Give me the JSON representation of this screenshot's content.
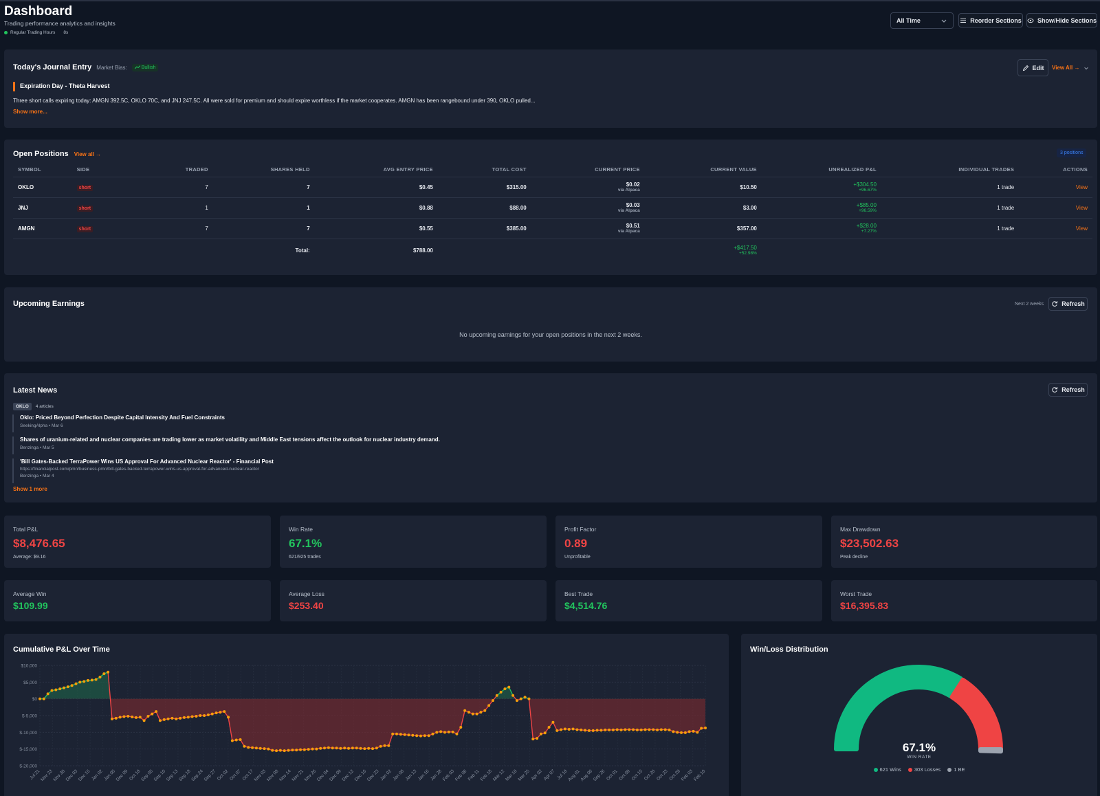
{
  "header": {
    "title": "Dashboard",
    "subtitle": "Trading performance analytics and insights",
    "session": "Regular Trading Hours",
    "refresh_age": "8s",
    "range_select": "All Time",
    "reorder_label": "Reorder Sections",
    "showhide_label": "Show/Hide Sections"
  },
  "journal": {
    "title": "Today's Journal Entry",
    "bias_label": "Market Bias:",
    "bias_value": "Bullish",
    "edit_label": "Edit",
    "view_all_label": "View All →",
    "entry_title": "Expiration Day - Theta Harvest",
    "entry_text": "Three short calls expiring today: AMGN 392.5C, OKLO 70C, and JNJ 247.5C. All were sold for premium and should expire worthless if the market cooperates. AMGN has been rangebound under 390, OKLO pulled...",
    "show_more": "Show more..."
  },
  "positions": {
    "title": "Open Positions",
    "view_all": "View all →",
    "count_badge": "3 positions",
    "columns": [
      "Symbol",
      "Side",
      "Traded",
      "Shares Held",
      "Avg Entry Price",
      "Total Cost",
      "Current Price",
      "Current Value",
      "Unrealized P&L",
      "Individual Trades",
      "Actions"
    ],
    "rows": [
      {
        "symbol": "OKLO",
        "side": "short",
        "traded": "7",
        "shares": "7",
        "avg_entry": "$0.45",
        "total_cost": "$315.00",
        "current_price": "$0.02",
        "price_source": "via Alpaca",
        "current_value": "$10.50",
        "pnl": "+$304.50",
        "pnl_pct": "+96.67%",
        "trades": "1 trade",
        "action": "View"
      },
      {
        "symbol": "JNJ",
        "side": "short",
        "traded": "1",
        "shares": "1",
        "avg_entry": "$0.88",
        "total_cost": "$88.00",
        "current_price": "$0.03",
        "price_source": "via Alpaca",
        "current_value": "$3.00",
        "pnl": "+$85.00",
        "pnl_pct": "+96.59%",
        "trades": "1 trade",
        "action": "View"
      },
      {
        "symbol": "AMGN",
        "side": "short",
        "traded": "7",
        "shares": "7",
        "avg_entry": "$0.55",
        "total_cost": "$385.00",
        "current_price": "$0.51",
        "price_source": "via Alpaca",
        "current_value": "$357.00",
        "pnl": "+$28.00",
        "pnl_pct": "+7.27%",
        "trades": "1 trade",
        "action": "View"
      }
    ],
    "total_label": "Total:",
    "total_cost": "$788.00",
    "total_pnl": "+$417.50",
    "total_pnl_pct": "+52.98%"
  },
  "earnings": {
    "title": "Upcoming Earnings",
    "window": "Next 2 weeks",
    "refresh_label": "Refresh",
    "empty_text": "No upcoming earnings for your open positions in the next 2 weeks."
  },
  "news": {
    "title": "Latest News",
    "refresh_label": "Refresh",
    "ticker": "OKLO",
    "article_count": "4 articles",
    "articles": [
      {
        "title": "Oklo: Priced Beyond Perfection Despite Capital Intensity And Fuel Constraints",
        "url": "",
        "meta": "SeekingAlpha • Mar 6"
      },
      {
        "title": "Shares of uranium-related and nuclear companies are trading lower as market volatility and Middle East tensions affect the outlook for nuclear industry demand.",
        "url": "",
        "meta": "Benzinga • Mar 5"
      },
      {
        "title": "'Bill Gates-Backed TerraPower Wins US Approval For Advanced Nuclear Reactor' - Financial Post",
        "url": "https://financialpost.com/pmn/business-pmn/bill-gates-backed-terrapower-wins-us-approval-for-advanced-nuclear-reactor",
        "meta": "Benzinga • Mar 4"
      }
    ],
    "show_more": "Show 1 more"
  },
  "stats": [
    {
      "label": "Total P&L",
      "value": "$8,476.65",
      "sub": "Average: $9.16",
      "tone": "red"
    },
    {
      "label": "Win Rate",
      "value": "67.1%",
      "sub": "621/925 trades",
      "tone": "green"
    },
    {
      "label": "Profit Factor",
      "value": "0.89",
      "sub": "Unprofitable",
      "tone": "red"
    },
    {
      "label": "Max Drawdown",
      "value": "$23,502.63",
      "sub": "Peak decline",
      "tone": "red"
    },
    {
      "label": "Average Win",
      "value": "$109.99",
      "sub": "",
      "tone": "green"
    },
    {
      "label": "Average Loss",
      "value": "$253.40",
      "sub": "",
      "tone": "red"
    },
    {
      "label": "Best Trade",
      "value": "$4,514.76",
      "sub": "",
      "tone": "green"
    },
    {
      "label": "Worst Trade",
      "value": "$16,395.83",
      "sub": "",
      "tone": "red"
    }
  ],
  "cum_chart": {
    "title": "Cumulative P&L Over Time"
  },
  "winloss": {
    "title": "Win/Loss Distribution",
    "rate": "67.1%",
    "rate_label": "WIN RATE",
    "legend": [
      "621 Wins",
      "303 Losses",
      "1 BE"
    ],
    "colors": {
      "wins": "#10b981",
      "losses": "#ef4444",
      "be": "#9ca3af"
    }
  },
  "colors": {
    "accent": "#f97316",
    "positive": "#22c55e",
    "negative": "#ef4444",
    "badge_blue": "#3b82f6"
  },
  "chart_data": [
    {
      "type": "line",
      "title": "Cumulative P&L Over Time",
      "ylim": [
        -20000,
        10000
      ],
      "y_ticks": [
        "$10,000",
        "$5,000",
        "$0",
        "$-5,000",
        "$-10,000",
        "$-15,000",
        "$-20,000"
      ],
      "y_tick_values": [
        10000,
        5000,
        0,
        -5000,
        -10000,
        -15000,
        -20000
      ],
      "x_ticks": [
        "Jul 21",
        "Nov 23",
        "Nov 30",
        "Dec 03",
        "Dec 15",
        "Jan 02",
        "Jan 05",
        "Dec 09",
        "Oct 18",
        "Sep 05",
        "Sep 10",
        "Sep 13",
        "Sep 18",
        "Sep 24",
        "Sep 27",
        "Oct 02",
        "Oct 07",
        "Oct 17",
        "Nov 03",
        "Nov 08",
        "Nov 14",
        "Nov 21",
        "Nov 26",
        "Dec 04",
        "Dec 09",
        "Dec 12",
        "Dec 16",
        "Dec 23",
        "Jan 02",
        "Jan 08",
        "Jan 13",
        "Jan 16",
        "Jan 28",
        "Feb 03",
        "Feb 06",
        "Feb 11",
        "Feb 18",
        "Mar 12",
        "Mar 18",
        "Mar 25",
        "Apr 02",
        "Apr 07",
        "Jul 18",
        "Aug 01",
        "Aug 06",
        "Sep 26",
        "Oct 01",
        "Oct 09",
        "Oct 15",
        "Oct 20",
        "Oct 23",
        "Oct 28",
        "Feb 03",
        "Feb 10"
      ],
      "series": [
        {
          "values": [
            0,
            0,
            1500,
            2500,
            2700,
            3000,
            3300,
            3600,
            4000,
            4500,
            5000,
            5200,
            5500,
            5600,
            5800,
            6500,
            7500,
            8000,
            -6000,
            -5800,
            -5500,
            -5300,
            -5200,
            -5400,
            -5600,
            -5500,
            -6500,
            -5200,
            -4500,
            -3800,
            -6500,
            -6200,
            -6000,
            -5800,
            -6000,
            -5800,
            -5600,
            -5500,
            -5300,
            -5200,
            -5000,
            -5000,
            -4800,
            -4500,
            -4200,
            -4000,
            -3800,
            -5500,
            -12500,
            -12300,
            -12200,
            -14200,
            -14500,
            -14600,
            -14700,
            -14800,
            -14900,
            -15000,
            -15400,
            -15500,
            -15400,
            -15500,
            -15400,
            -15300,
            -15300,
            -15200,
            -15200,
            -15100,
            -15000,
            -15000,
            -14800,
            -14700,
            -14600,
            -14700,
            -14700,
            -14800,
            -14700,
            -14800,
            -14700,
            -14700,
            -14800,
            -14900,
            -14800,
            -14900,
            -14700,
            -14200,
            -14000,
            -14000,
            -10500,
            -10500,
            -10600,
            -10700,
            -10800,
            -10900,
            -11000,
            -11100,
            -11000,
            -11000,
            -10500,
            -10000,
            -9800,
            -10000,
            -9900,
            -9900,
            -10500,
            -8500,
            -3500,
            -4000,
            -4500,
            -4500,
            -4000,
            -3500,
            -2000,
            -500,
            1000,
            2000,
            3000,
            3500,
            1000,
            -500,
            0,
            500,
            0,
            -12000,
            -11800,
            -10500,
            -10200,
            -8500,
            -7000,
            -9500,
            -9200,
            -9000,
            -9100,
            -9000,
            -9200,
            -9300,
            -9400,
            -9500,
            -9500,
            -9400,
            -9400,
            -9300,
            -9300,
            -9300,
            -9200,
            -9300,
            -9200,
            -9200,
            -9200,
            -9300,
            -9300,
            -9200,
            -9200,
            -9200,
            -9300,
            -9200,
            -9200,
            -9300,
            -9800,
            -10000,
            -10100,
            -10100,
            -9800,
            -9700,
            -10000,
            -8800,
            -8700
          ]
        }
      ]
    },
    {
      "type": "pie",
      "title": "Win/Loss Distribution",
      "categories": [
        "Wins",
        "Losses",
        "BE"
      ],
      "values": [
        621,
        303,
        1
      ]
    }
  ]
}
